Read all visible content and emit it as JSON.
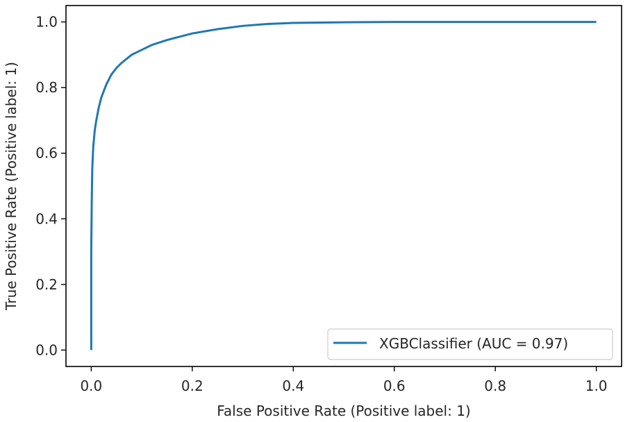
{
  "chart_data": {
    "type": "line",
    "xlabel": "False Positive Rate (Positive label: 1)",
    "ylabel": "True Positive Rate (Positive label: 1)",
    "xlim": [
      -0.05,
      1.05
    ],
    "ylim": [
      -0.05,
      1.05
    ],
    "xticks": [
      0.0,
      0.2,
      0.4,
      0.6,
      0.8,
      1.0
    ],
    "xtick_labels": [
      "0.0",
      "0.2",
      "0.4",
      "0.6",
      "0.8",
      "1.0"
    ],
    "yticks": [
      0.0,
      0.2,
      0.4,
      0.6,
      0.8,
      1.0
    ],
    "ytick_labels": [
      "0.0",
      "0.2",
      "0.4",
      "0.6",
      "0.8",
      "1.0"
    ],
    "grid": false,
    "legend_position": "bottom-right",
    "series": [
      {
        "name": "XGBClassifier (AUC = 0.97)",
        "color": "#1f77b4",
        "x": [
          0.0,
          0.0,
          0.001,
          0.002,
          0.004,
          0.007,
          0.01,
          0.015,
          0.02,
          0.03,
          0.04,
          0.05,
          0.06,
          0.08,
          0.1,
          0.12,
          0.15,
          0.2,
          0.25,
          0.3,
          0.35,
          0.4,
          0.5,
          0.6,
          0.8,
          1.0
        ],
        "y": [
          0.0,
          0.3,
          0.45,
          0.55,
          0.62,
          0.67,
          0.7,
          0.74,
          0.77,
          0.81,
          0.84,
          0.86,
          0.875,
          0.9,
          0.915,
          0.93,
          0.945,
          0.965,
          0.978,
          0.988,
          0.994,
          0.997,
          0.999,
          1.0,
          1.0,
          1.0
        ]
      }
    ]
  }
}
